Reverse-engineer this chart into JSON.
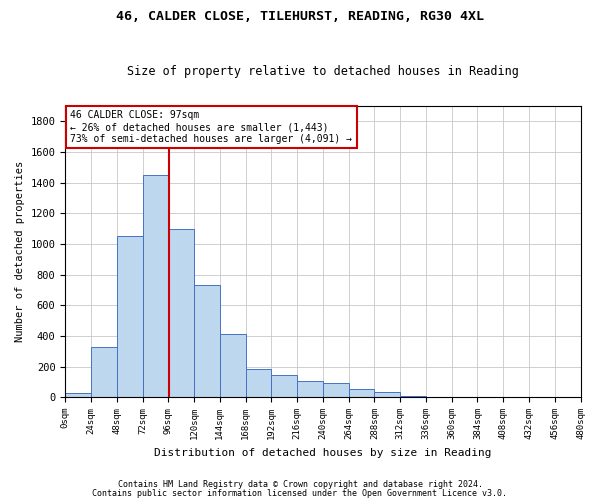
{
  "title1": "46, CALDER CLOSE, TILEHURST, READING, RG30 4XL",
  "title2": "Size of property relative to detached houses in Reading",
  "xlabel": "Distribution of detached houses by size in Reading",
  "ylabel": "Number of detached properties",
  "footnote1": "Contains HM Land Registry data © Crown copyright and database right 2024.",
  "footnote2": "Contains public sector information licensed under the Open Government Licence v3.0.",
  "annotation_line1": "46 CALDER CLOSE: 97sqm",
  "annotation_line2": "← 26% of detached houses are smaller (1,443)",
  "annotation_line3": "73% of semi-detached houses are larger (4,091) →",
  "property_size": 97,
  "bin_width": 24,
  "bin_starts": [
    0,
    24,
    48,
    72,
    96,
    120,
    144,
    168,
    192,
    216,
    240,
    264,
    288,
    312,
    336,
    360,
    384,
    408,
    432,
    456
  ],
  "bar_heights": [
    30,
    330,
    1050,
    1450,
    1100,
    730,
    415,
    185,
    145,
    105,
    90,
    55,
    35,
    5,
    0,
    0,
    0,
    0,
    0,
    0
  ],
  "bar_color": "#bdd7ee",
  "bar_edge_color": "#4472c4",
  "line_color": "#cc0000",
  "ylim": [
    0,
    1900
  ],
  "yticks": [
    0,
    200,
    400,
    600,
    800,
    1000,
    1200,
    1400,
    1600,
    1800
  ],
  "background_color": "#ffffff",
  "grid_color": "#c8c8c8",
  "annotation_box_color": "#ffffff",
  "annotation_box_edge": "#cc0000"
}
